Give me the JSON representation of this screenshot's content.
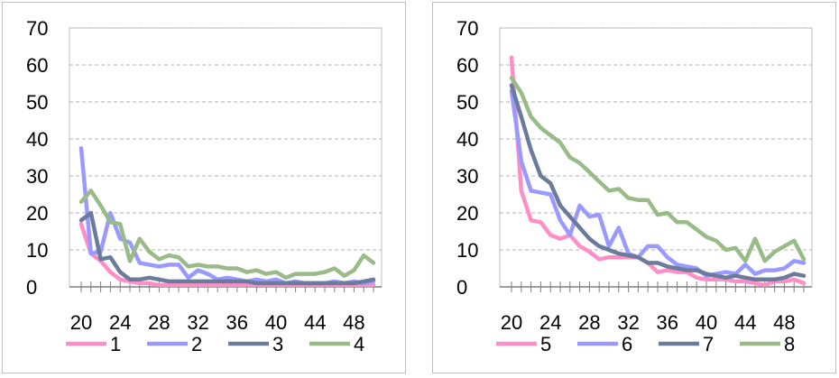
{
  "chart_data": [
    {
      "type": "line",
      "x": [
        20,
        21,
        22,
        23,
        24,
        25,
        26,
        27,
        28,
        29,
        30,
        31,
        32,
        33,
        34,
        35,
        36,
        37,
        38,
        39,
        40,
        41,
        42,
        43,
        44,
        45,
        46,
        47,
        48,
        49,
        50
      ],
      "xticks": [
        "20",
        "24",
        "28",
        "32",
        "36",
        "40",
        "44",
        "48"
      ],
      "yticks": [
        "0",
        "10",
        "20",
        "30",
        "40",
        "50",
        "60",
        "70"
      ],
      "ylim": [
        0,
        70
      ],
      "grid": "horizontal dashed",
      "legend_position": "bottom",
      "series": [
        {
          "name": "1",
          "color": "#ff8ec6",
          "values": [
            17,
            9,
            7,
            4,
            2,
            1.5,
            1,
            1,
            0.5,
            0.5,
            0.5,
            0.5,
            0.5,
            0.5,
            0.5,
            0.5,
            0.5,
            0.5,
            0.5,
            0.5,
            0.5,
            0.5,
            0.5,
            0.5,
            0.5,
            0.5,
            0.5,
            0.5,
            0.5,
            0.5,
            0.5
          ]
        },
        {
          "name": "2",
          "color": "#9999ff",
          "values": [
            37.5,
            9,
            9.5,
            20,
            13,
            12,
            6.5,
            6,
            5.5,
            6,
            6,
            2.5,
            4.5,
            3.5,
            2,
            2.5,
            2,
            1.5,
            2,
            1.5,
            2,
            1,
            1.5,
            1,
            1,
            1,
            1.5,
            1,
            1.5,
            1,
            1.5
          ]
        },
        {
          "name": "3",
          "color": "#6b7b9c",
          "values": [
            18,
            20,
            7.5,
            8,
            4,
            2,
            2,
            2.5,
            2,
            1.5,
            1.5,
            1.5,
            1.5,
            1.5,
            1.5,
            1.5,
            1.5,
            1.5,
            1,
            1,
            1,
            1,
            1,
            1,
            1,
            1,
            1,
            1,
            1,
            1.5,
            2
          ]
        },
        {
          "name": "4",
          "color": "#99bb88",
          "values": [
            23,
            26,
            22,
            17.5,
            17,
            7,
            13,
            9.5,
            7.5,
            8.5,
            8,
            5.5,
            6,
            5.5,
            5.5,
            5,
            5,
            4,
            4.5,
            3.5,
            4,
            2.5,
            3.5,
            3.5,
            3.5,
            4,
            5,
            3,
            4.5,
            8.5,
            6.5
          ]
        }
      ]
    },
    {
      "type": "line",
      "x": [
        20,
        21,
        22,
        23,
        24,
        25,
        26,
        27,
        28,
        29,
        30,
        31,
        32,
        33,
        34,
        35,
        36,
        37,
        38,
        39,
        40,
        41,
        42,
        43,
        44,
        45,
        46,
        47,
        48,
        49,
        50
      ],
      "xticks": [
        "20",
        "24",
        "28",
        "32",
        "36",
        "40",
        "44",
        "48"
      ],
      "yticks": [
        "0",
        "10",
        "20",
        "30",
        "40",
        "50",
        "60",
        "70"
      ],
      "ylim": [
        0,
        70
      ],
      "grid": "horizontal dashed",
      "legend_position": "bottom",
      "series": [
        {
          "name": "5",
          "color": "#ff8ec6",
          "values": [
            62,
            26,
            18,
            17.5,
            14,
            13,
            14,
            11,
            9.5,
            7.5,
            8,
            8,
            8,
            8,
            6.5,
            4,
            4.5,
            4,
            4,
            2.5,
            2,
            2,
            2,
            1.5,
            1.5,
            1,
            0.5,
            1.5,
            1.5,
            2,
            1
          ]
        },
        {
          "name": "6",
          "color": "#9999ff",
          "values": [
            53,
            34,
            26,
            25.5,
            25,
            18,
            14,
            22,
            19,
            19.5,
            11,
            16,
            9,
            8,
            11,
            11,
            8,
            6,
            5.5,
            5,
            3,
            3.5,
            4,
            3.5,
            6,
            3.5,
            4.5,
            4.5,
            5,
            7,
            6.5
          ]
        },
        {
          "name": "7",
          "color": "#6b7b9c",
          "values": [
            54.5,
            46,
            37,
            30,
            28,
            22,
            19,
            16,
            13,
            11,
            10,
            9,
            8.5,
            8,
            6.5,
            6.5,
            5.5,
            5,
            4.5,
            4.5,
            3.5,
            3,
            2.5,
            3,
            2.5,
            2,
            2,
            2,
            2.5,
            3.5,
            3
          ]
        },
        {
          "name": "8",
          "color": "#99bb88",
          "values": [
            56.5,
            52.5,
            46,
            43,
            41,
            39,
            35,
            33.5,
            31,
            28.5,
            26,
            26.5,
            24,
            23.5,
            23.5,
            19.5,
            20,
            17.5,
            17.5,
            15.5,
            13.5,
            12.5,
            10,
            10.5,
            7,
            13,
            7,
            9.5,
            11,
            12.5,
            7.5
          ]
        }
      ]
    }
  ]
}
